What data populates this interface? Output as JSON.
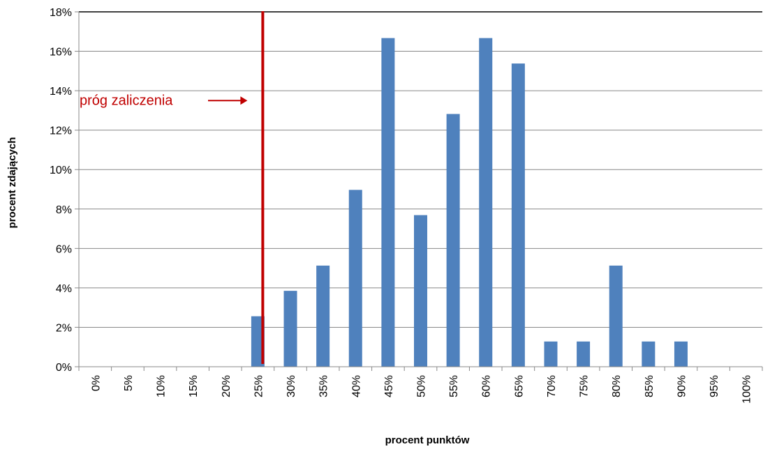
{
  "chart_data": {
    "type": "bar",
    "title": "",
    "xlabel": "procent punktów",
    "ylabel": "procent zdających",
    "categories": [
      "0%",
      "5%",
      "10%",
      "15%",
      "20%",
      "25%",
      "30%",
      "35%",
      "40%",
      "45%",
      "50%",
      "55%",
      "60%",
      "65%",
      "70%",
      "75%",
      "80%",
      "85%",
      "90%",
      "95%",
      "100%"
    ],
    "values": [
      0,
      0,
      0,
      0,
      0,
      2.56,
      3.85,
      5.13,
      8.97,
      16.67,
      7.69,
      12.82,
      16.67,
      15.38,
      1.28,
      1.28,
      5.13,
      1.28,
      1.28,
      0,
      0
    ],
    "ylim": [
      0,
      18
    ],
    "yticks": [
      0,
      2,
      4,
      6,
      8,
      10,
      12,
      14,
      16,
      18
    ],
    "ytick_labels": [
      "0%",
      "2%",
      "4%",
      "6%",
      "8%",
      "10%",
      "12%",
      "14%",
      "16%",
      "18%"
    ],
    "grid": true,
    "bar_color": "#4F81BD",
    "threshold": {
      "x_category_position": 5.65,
      "label": "próg zaliczenia",
      "color": "#C00000"
    }
  }
}
